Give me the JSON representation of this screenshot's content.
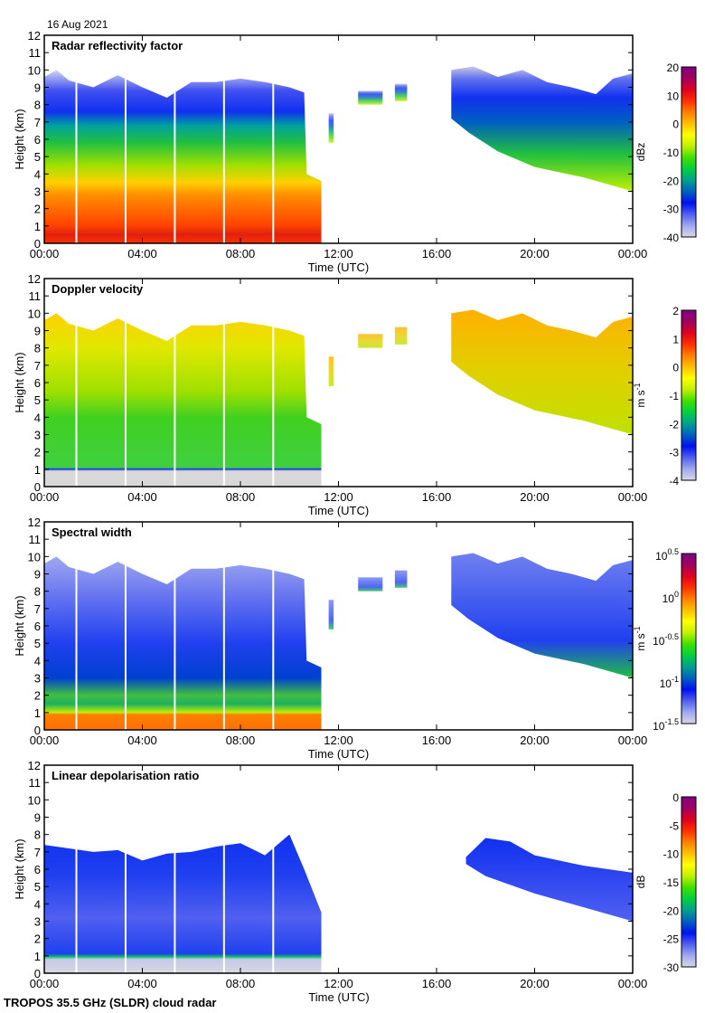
{
  "header": {
    "date": "16 Aug 2021"
  },
  "footer": {
    "instrument": "TROPOS 35.5 GHz (SLDR) cloud radar"
  },
  "chart_data": [
    {
      "type": "heatmap",
      "title": "Radar reflectivity factor",
      "xlabel": "Time (UTC)",
      "ylabel": "Height (km)",
      "x_ticks": [
        "00:00",
        "04:00",
        "08:00",
        "12:00",
        "16:00",
        "20:00",
        "00:00"
      ],
      "y_ticks": [
        0,
        1,
        2,
        3,
        4,
        5,
        6,
        7,
        8,
        9,
        10,
        11,
        12
      ],
      "ylim": [
        0,
        12
      ],
      "xlim_hours": [
        0,
        24
      ],
      "colorbar": {
        "label": "dBz",
        "ticks": [
          "20",
          "10",
          "0",
          "-10",
          "-20",
          "-30",
          "-40"
        ],
        "range": [
          -40,
          20
        ]
      },
      "cloud_regions": [
        {
          "start_h": 0,
          "end_h": 11.3,
          "base_km": 0,
          "top_km": 9.5,
          "description": "deep precipitating cloud, strong echo 0-3 km"
        },
        {
          "start_h": 16.6,
          "end_h": 24,
          "base_km": 3.5,
          "top_km": 9.5,
          "description": "descending ice cloud"
        }
      ]
    },
    {
      "type": "heatmap",
      "title": "Doppler velocity",
      "xlabel": "Time (UTC)",
      "ylabel": "Height (km)",
      "x_ticks": [
        "00:00",
        "04:00",
        "08:00",
        "12:00",
        "16:00",
        "20:00",
        "00:00"
      ],
      "y_ticks": [
        0,
        1,
        2,
        3,
        4,
        5,
        6,
        7,
        8,
        9,
        10,
        11,
        12
      ],
      "ylim": [
        0,
        12
      ],
      "xlim_hours": [
        0,
        24
      ],
      "colorbar": {
        "label": "m s-1",
        "ticks": [
          "2",
          "1",
          "0",
          "-1",
          "-2",
          "-3",
          "-4"
        ],
        "range": [
          -4,
          2
        ]
      }
    },
    {
      "type": "heatmap",
      "title": "Spectral width",
      "xlabel": "Time (UTC)",
      "ylabel": "Height (km)",
      "x_ticks": [
        "00:00",
        "04:00",
        "08:00",
        "12:00",
        "16:00",
        "20:00",
        "00:00"
      ],
      "y_ticks": [
        0,
        1,
        2,
        3,
        4,
        5,
        6,
        7,
        8,
        9,
        10,
        11,
        12
      ],
      "ylim": [
        0,
        12
      ],
      "xlim_hours": [
        0,
        24
      ],
      "colorbar": {
        "label": "m s-1",
        "ticks": [
          "10^0.5",
          "10^0",
          "10^-0.5",
          "10^-1",
          "10^-1.5"
        ],
        "range_log10": [
          -1.5,
          0.5
        ]
      }
    },
    {
      "type": "heatmap",
      "title": "Linear depolarisation ratio",
      "xlabel": "Time (UTC)",
      "ylabel": "Height (km)",
      "x_ticks": [
        "00:00",
        "04:00",
        "08:00",
        "12:00",
        "16:00",
        "20:00",
        "00:00"
      ],
      "y_ticks": [
        0,
        1,
        2,
        3,
        4,
        5,
        6,
        7,
        8,
        9,
        10,
        11,
        12
      ],
      "ylim": [
        0,
        12
      ],
      "xlim_hours": [
        0,
        24
      ],
      "colorbar": {
        "label": "dB",
        "ticks": [
          "0",
          "-5",
          "-10",
          "-15",
          "-20",
          "-25",
          "-30"
        ],
        "range": [
          -30,
          0
        ]
      }
    }
  ]
}
